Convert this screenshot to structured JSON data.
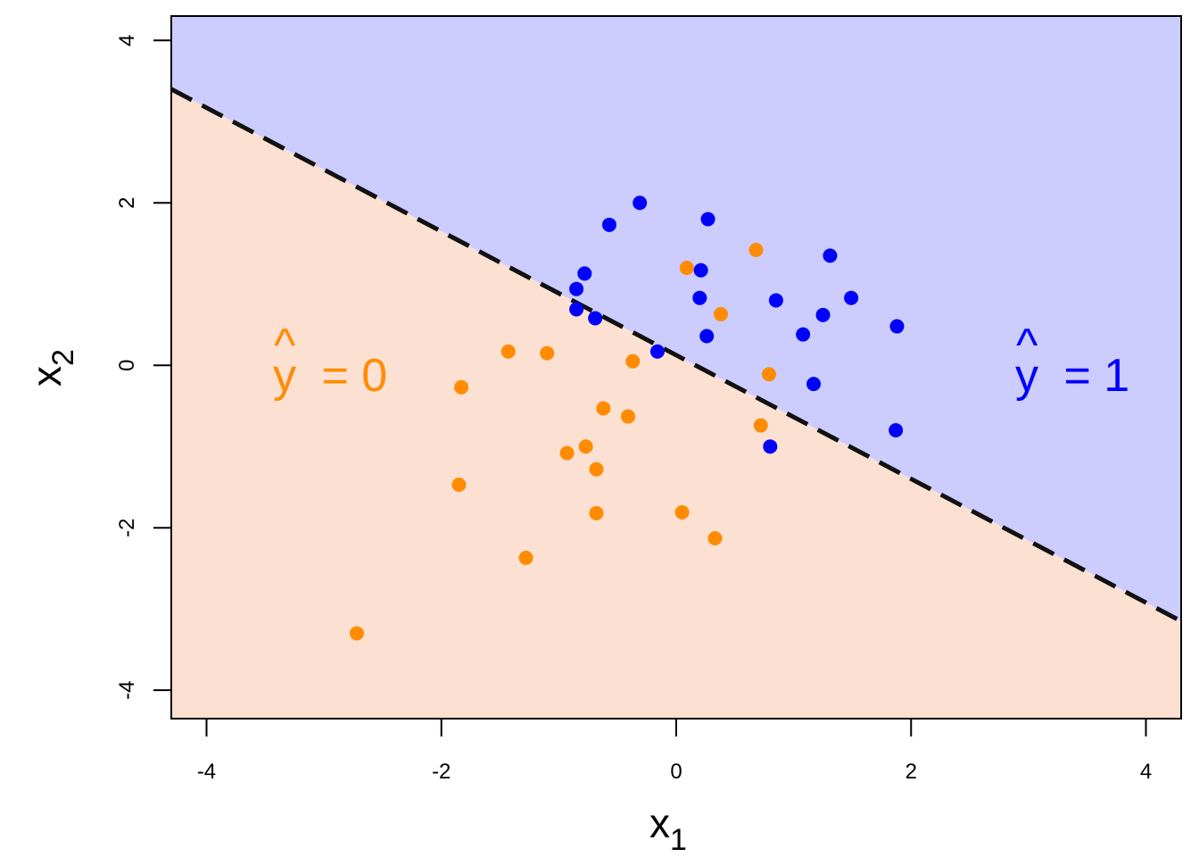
{
  "chart_data": {
    "type": "scatter",
    "title": "",
    "xlabel": "x",
    "xlabel_subscript": "1",
    "ylabel": "x",
    "ylabel_subscript": "2",
    "xlim": [
      -4.3,
      4.3
    ],
    "ylim": [
      -4.35,
      4.3
    ],
    "xticks": [
      -4,
      -2,
      0,
      2,
      4
    ],
    "yticks": [
      -4,
      -2,
      0,
      2,
      4
    ],
    "xtick_labels": [
      "-4",
      "-2",
      "0",
      "2",
      "4"
    ],
    "ytick_labels": [
      "-4",
      "-2",
      "0",
      "2",
      "4"
    ],
    "grid": false,
    "decision_boundary": {
      "style": "dashed",
      "color": "#111111",
      "points": [
        [
          -4.3,
          3.4
        ],
        [
          4.3,
          -3.15
        ]
      ]
    },
    "regions": [
      {
        "label_hat": "^",
        "label_var": "y",
        "label_rest": " = 0",
        "class": 0,
        "color": "#FCE0D2",
        "text_color": "#FF8C00",
        "position": "lower-left"
      },
      {
        "label_hat": "^",
        "label_var": "y",
        "label_rest": " = 1",
        "class": 1,
        "color": "#CCCCFF",
        "text_color": "#0000FF",
        "position": "upper-right"
      }
    ],
    "series": [
      {
        "class": 0,
        "color": "#FF8C00",
        "points": [
          [
            -2.72,
            -3.3
          ],
          [
            -1.85,
            -1.47
          ],
          [
            -1.83,
            -0.27
          ],
          [
            -1.43,
            0.17
          ],
          [
            -1.1,
            0.15
          ],
          [
            -1.28,
            -2.37
          ],
          [
            -0.93,
            -1.08
          ],
          [
            -0.77,
            -1.0
          ],
          [
            -0.68,
            -1.28
          ],
          [
            -0.68,
            -1.82
          ],
          [
            -0.62,
            -0.53
          ],
          [
            -0.41,
            -0.63
          ],
          [
            -0.37,
            0.05
          ],
          [
            0.05,
            -1.81
          ],
          [
            0.33,
            -2.13
          ],
          [
            0.09,
            1.2
          ],
          [
            0.38,
            0.63
          ],
          [
            0.68,
            1.42
          ],
          [
            0.72,
            -0.74
          ],
          [
            0.79,
            -0.11
          ]
        ]
      },
      {
        "class": 1,
        "color": "#0000FF",
        "points": [
          [
            -0.31,
            2.0
          ],
          [
            0.27,
            1.8
          ],
          [
            -0.57,
            1.73
          ],
          [
            -0.78,
            1.13
          ],
          [
            -0.85,
            0.94
          ],
          [
            -0.85,
            0.69
          ],
          [
            -0.69,
            0.58
          ],
          [
            -0.16,
            0.17
          ],
          [
            0.21,
            1.17
          ],
          [
            0.2,
            0.83
          ],
          [
            0.26,
            0.36
          ],
          [
            0.85,
            0.8
          ],
          [
            1.08,
            0.38
          ],
          [
            1.25,
            0.62
          ],
          [
            1.31,
            1.35
          ],
          [
            1.49,
            0.83
          ],
          [
            1.88,
            0.48
          ],
          [
            1.17,
            -0.23
          ],
          [
            1.87,
            -0.8
          ],
          [
            0.8,
            -1.0
          ]
        ]
      }
    ]
  }
}
